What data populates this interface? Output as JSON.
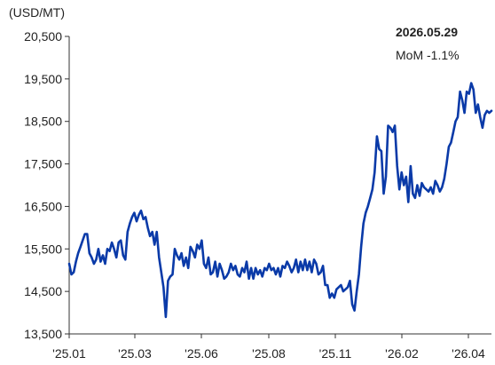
{
  "chart_data": {
    "type": "line",
    "title": "",
    "unit_label": "(USD/MT)",
    "ylim": [
      13500,
      20500
    ],
    "yticks": [
      13500,
      14500,
      15500,
      16500,
      17500,
      18500,
      19500,
      20500
    ],
    "ytick_labels": [
      "13,500",
      "14,500",
      "15,500",
      "16,500",
      "17,500",
      "18,500",
      "19,500",
      "20,500"
    ],
    "xtick_labels": [
      "'25.01",
      "'25.03",
      "'25.06",
      "'25.08",
      "'25.11",
      "'26.02",
      "'26.04"
    ],
    "annotation": {
      "date": "2026.05.29",
      "mom": "MoM -1.1%"
    },
    "series_color": "#0a3aa8",
    "series": [
      {
        "name": "",
        "values": [
          15150,
          14900,
          14950,
          15200,
          15400,
          15550,
          15700,
          15850,
          15850,
          15400,
          15300,
          15150,
          15250,
          15500,
          15200,
          15350,
          15150,
          15500,
          15450,
          15650,
          15500,
          15300,
          15650,
          15700,
          15350,
          15250,
          15900,
          16100,
          16250,
          16350,
          16150,
          16300,
          16400,
          16200,
          16250,
          16000,
          15800,
          15900,
          15600,
          15900,
          15300,
          14950,
          14600,
          13900,
          14750,
          14850,
          14900,
          15500,
          15350,
          15250,
          15400,
          15100,
          15300,
          15050,
          15550,
          15450,
          15300,
          15600,
          15500,
          15700,
          15150,
          15050,
          15300,
          14900,
          14950,
          15200,
          14850,
          15150,
          15000,
          14800,
          14850,
          14950,
          15150,
          15000,
          15100,
          14900,
          14850,
          15050,
          14950,
          15200,
          14800,
          15050,
          14800,
          15050,
          14900,
          15000,
          14850,
          15050,
          15000,
          15150,
          15000,
          15050,
          14900,
          15050,
          14850,
          15100,
          15050,
          15200,
          15100,
          14950,
          15050,
          15250,
          14950,
          15200,
          15000,
          15250,
          15000,
          15200,
          14950,
          15250,
          15150,
          14900,
          14950,
          15100,
          14650,
          14650,
          14350,
          14450,
          14350,
          14550,
          14600,
          14650,
          14500,
          14550,
          14600,
          14750,
          14200,
          14050,
          14500,
          14900,
          15550,
          16100,
          16350,
          16500,
          16700,
          16900,
          17300,
          18150,
          17850,
          17800,
          16800,
          17200,
          18400,
          18350,
          18250,
          18400,
          17450,
          16900,
          17300,
          17000,
          17200,
          16600,
          17450,
          16800,
          16700,
          17000,
          16750,
          17050,
          16950,
          16900,
          16850,
          16950,
          16800,
          17100,
          17000,
          16850,
          16950,
          17150,
          17500,
          17900,
          18000,
          18250,
          18500,
          18600,
          19200,
          19000,
          18700,
          19200,
          19150,
          19400,
          19250,
          18700,
          18900,
          18600,
          18350,
          18650,
          18750,
          18700,
          18750
        ]
      }
    ]
  }
}
